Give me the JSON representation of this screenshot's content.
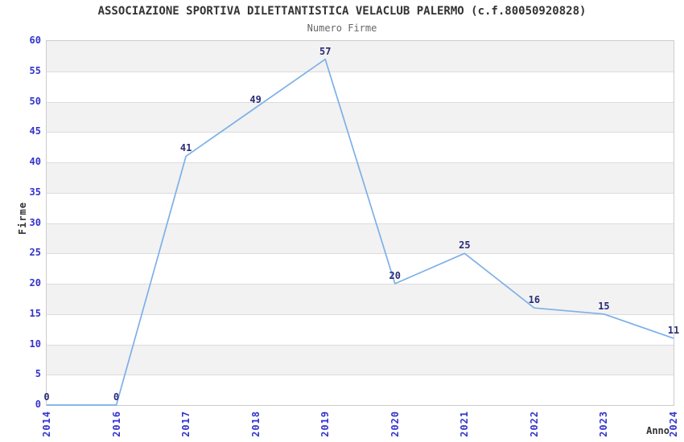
{
  "chart_data": {
    "type": "line",
    "title": "ASSOCIAZIONE SPORTIVA DILETTANTISTICA VELACLUB PALERMO (c.f.80050920828)",
    "subtitle": "Numero Firme",
    "xlabel": "Anno",
    "ylabel": "Firme",
    "categories": [
      "2014",
      "2016",
      "2017",
      "2018",
      "2019",
      "2020",
      "2021",
      "2022",
      "2023",
      "2024"
    ],
    "values": [
      0,
      0,
      41,
      49,
      57,
      20,
      25,
      16,
      15,
      11
    ],
    "ylim": [
      0,
      60
    ],
    "ytick_step": 5,
    "grid": "horizontal-bands",
    "legend": "none",
    "point_labels_visible": true,
    "colors": {
      "background": "#ffffff",
      "line": "#7db0e8",
      "tick_label": "#3333cc",
      "point_label": "#2b2b78",
      "band": "#f2f2f2",
      "grid_line": "#dcdcdc",
      "plot_border": "#cccccc",
      "title": "#333333",
      "subtitle": "#666666",
      "axis_label": "#333333"
    }
  }
}
